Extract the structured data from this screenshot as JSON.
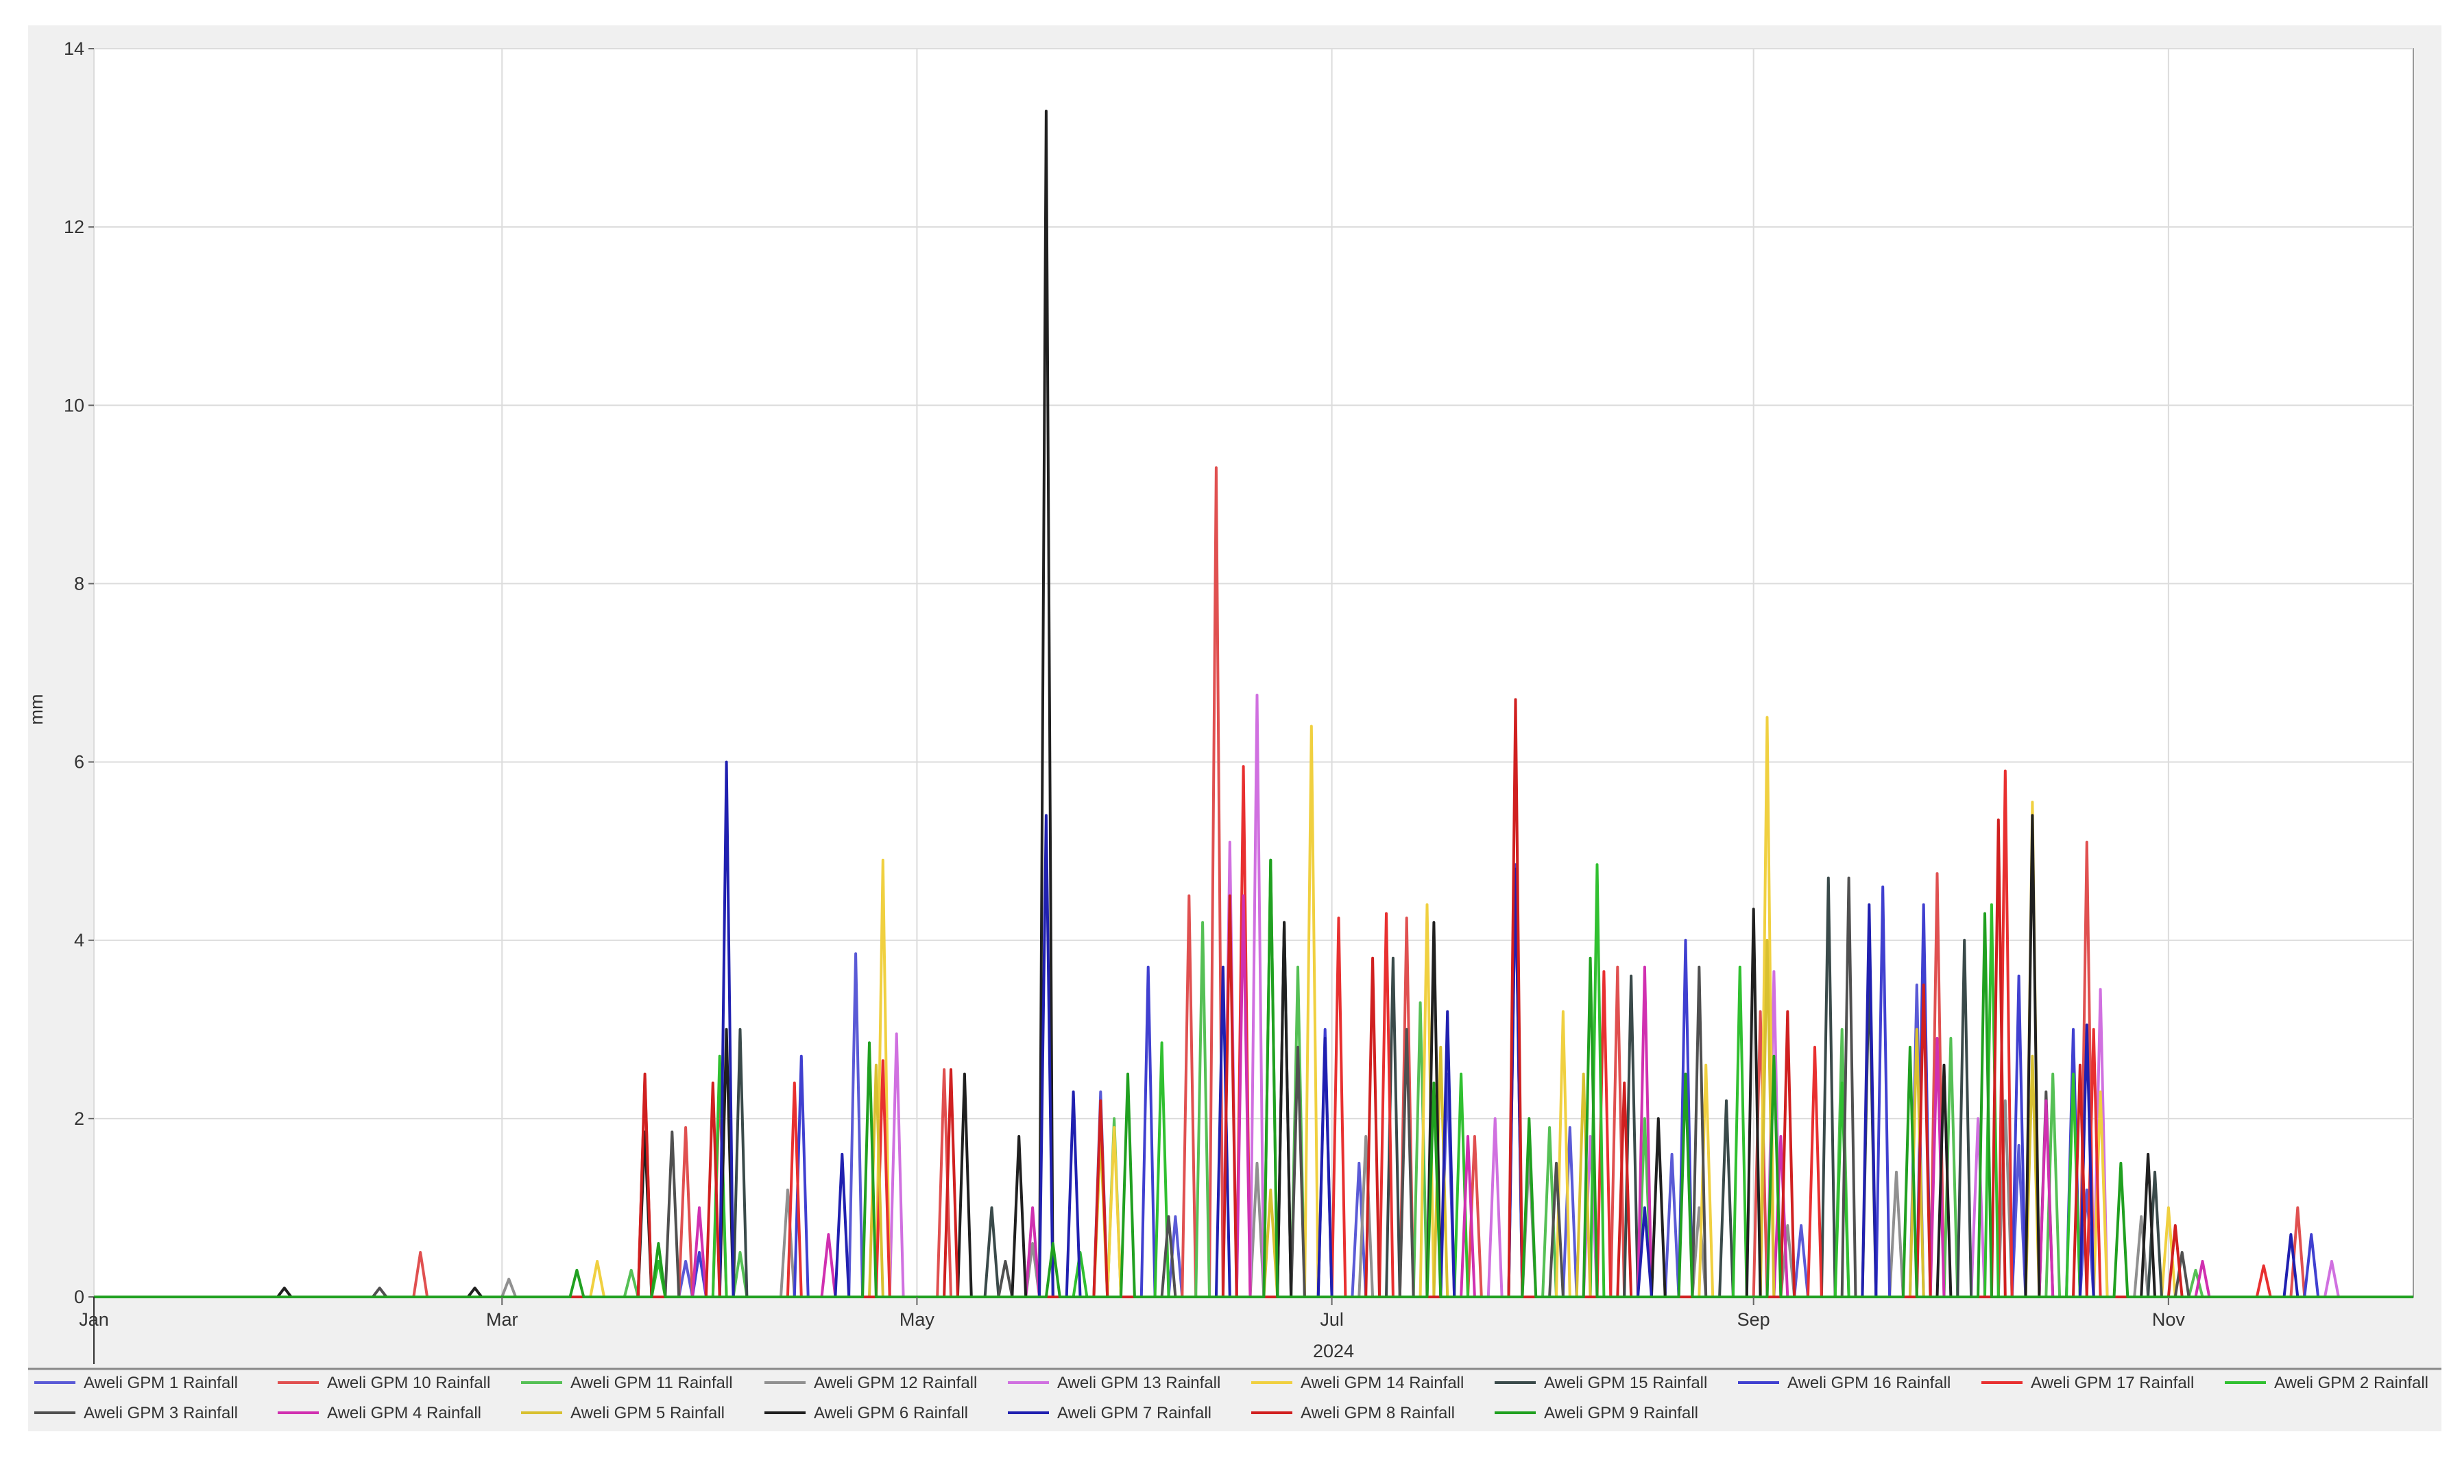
{
  "chart_data": {
    "type": "line",
    "title": "",
    "xlabel": "2024",
    "ylabel": "mm",
    "xlim": [
      "2024-01-01",
      "2024-12-07"
    ],
    "ylim": [
      0,
      14
    ],
    "yticks": [
      0,
      2,
      4,
      6,
      8,
      10,
      12,
      14
    ],
    "xticks": [
      {
        "date": "2024-01-01",
        "label": "Jan"
      },
      {
        "date": "2024-03-01",
        "label": "Mar"
      },
      {
        "date": "2024-05-01",
        "label": "May"
      },
      {
        "date": "2024-07-01",
        "label": "Jul"
      },
      {
        "date": "2024-09-01",
        "label": "Sep"
      },
      {
        "date": "2024-11-01",
        "label": "Nov"
      }
    ],
    "grid": true,
    "legend_placement": "bottom",
    "series": [
      {
        "name": "Aweli GPM 1 Rainfall",
        "color": "#5a5ad6",
        "points": [
          [
            "03-28",
            0.4
          ],
          [
            "04-22",
            3.85
          ],
          [
            "05-28",
            2.3
          ],
          [
            "06-08",
            0.9
          ],
          [
            "07-05",
            1.5
          ],
          [
            "07-18",
            2.5
          ],
          [
            "08-05",
            1.9
          ],
          [
            "08-20",
            1.6
          ],
          [
            "09-08",
            0.8
          ],
          [
            "09-25",
            3.5
          ],
          [
            "10-10",
            1.7
          ],
          [
            "10-20",
            1.2
          ]
        ]
      },
      {
        "name": "Aweli GPM 10 Rainfall",
        "color": "#e05050",
        "points": [
          [
            "02-18",
            0.5
          ],
          [
            "03-28",
            1.9
          ],
          [
            "04-02",
            2.4
          ],
          [
            "05-05",
            2.55
          ],
          [
            "06-10",
            4.5
          ],
          [
            "06-14",
            9.3
          ],
          [
            "07-12",
            4.25
          ],
          [
            "07-22",
            1.8
          ],
          [
            "08-12",
            3.7
          ],
          [
            "09-02",
            3.2
          ],
          [
            "09-28",
            4.75
          ],
          [
            "10-20",
            5.1
          ],
          [
            "11-20",
            1.0
          ]
        ]
      },
      {
        "name": "Aweli GPM 11 Rainfall",
        "color": "#55c055",
        "points": [
          [
            "03-20",
            0.3
          ],
          [
            "04-05",
            0.5
          ],
          [
            "05-30",
            2.0
          ],
          [
            "06-12",
            4.2
          ],
          [
            "06-26",
            3.7
          ],
          [
            "07-14",
            3.3
          ],
          [
            "08-02",
            1.9
          ],
          [
            "08-16",
            2.0
          ],
          [
            "09-14",
            3.0
          ],
          [
            "09-30",
            2.9
          ],
          [
            "10-15",
            2.5
          ],
          [
            "11-05",
            0.3
          ]
        ]
      },
      {
        "name": "Aweli GPM 12 Rainfall",
        "color": "#909090",
        "points": [
          [
            "03-02",
            0.2
          ],
          [
            "04-12",
            1.2
          ],
          [
            "05-18",
            0.6
          ],
          [
            "06-20",
            1.5
          ],
          [
            "07-06",
            1.8
          ],
          [
            "07-30",
            1.6
          ],
          [
            "08-24",
            1.0
          ],
          [
            "09-06",
            0.8
          ],
          [
            "09-22",
            1.4
          ],
          [
            "10-08",
            2.2
          ],
          [
            "10-28",
            0.9
          ]
        ]
      },
      {
        "name": "Aweli GPM 13 Rainfall",
        "color": "#d070e0",
        "points": [
          [
            "04-28",
            2.95
          ],
          [
            "06-16",
            5.1
          ],
          [
            "06-20",
            6.75
          ],
          [
            "07-25",
            2.0
          ],
          [
            "08-08",
            1.8
          ],
          [
            "09-04",
            3.65
          ],
          [
            "10-04",
            2.0
          ],
          [
            "10-22",
            3.45
          ],
          [
            "11-25",
            0.4
          ]
        ]
      },
      {
        "name": "Aweli GPM 14 Rainfall",
        "color": "#f0d040",
        "points": [
          [
            "03-15",
            0.4
          ],
          [
            "04-26",
            4.9
          ],
          [
            "05-30",
            1.9
          ],
          [
            "06-28",
            6.4
          ],
          [
            "07-15",
            4.4
          ],
          [
            "08-04",
            3.2
          ],
          [
            "08-25",
            2.6
          ],
          [
            "09-03",
            6.5
          ],
          [
            "10-12",
            5.55
          ],
          [
            "10-22",
            2.3
          ],
          [
            "11-01",
            1.0
          ]
        ]
      },
      {
        "name": "Aweli GPM 15 Rainfall",
        "color": "#3a4a4a",
        "points": [
          [
            "04-05",
            3.0
          ],
          [
            "05-12",
            1.0
          ],
          [
            "06-24",
            4.2
          ],
          [
            "07-10",
            3.8
          ],
          [
            "08-14",
            3.6
          ],
          [
            "08-28",
            2.2
          ],
          [
            "09-12",
            4.7
          ],
          [
            "09-18",
            3.7
          ],
          [
            "10-02",
            4.0
          ],
          [
            "10-30",
            1.4
          ]
        ]
      },
      {
        "name": "Aweli GPM 16 Rainfall",
        "color": "#4040d0",
        "points": [
          [
            "03-30",
            0.5
          ],
          [
            "04-14",
            2.7
          ],
          [
            "06-04",
            3.7
          ],
          [
            "06-30",
            3.0
          ],
          [
            "07-28",
            4.85
          ],
          [
            "08-22",
            4.0
          ],
          [
            "09-20",
            4.6
          ],
          [
            "09-26",
            4.4
          ],
          [
            "10-10",
            3.6
          ],
          [
            "10-18",
            3.0
          ],
          [
            "11-22",
            0.7
          ]
        ]
      },
      {
        "name": "Aweli GPM 17 Rainfall",
        "color": "#e83030",
        "points": [
          [
            "03-22",
            2.45
          ],
          [
            "04-13",
            2.4
          ],
          [
            "04-26",
            2.65
          ],
          [
            "06-18",
            5.95
          ],
          [
            "07-02",
            4.25
          ],
          [
            "07-09",
            4.3
          ],
          [
            "08-10",
            3.65
          ],
          [
            "09-10",
            2.8
          ],
          [
            "10-08",
            5.9
          ],
          [
            "10-21",
            3.0
          ],
          [
            "11-15",
            0.35
          ]
        ]
      },
      {
        "name": "Aweli GPM 2 Rainfall",
        "color": "#30c030",
        "points": [
          [
            "03-24",
            0.4
          ],
          [
            "04-02",
            2.7
          ],
          [
            "05-25",
            0.5
          ],
          [
            "06-06",
            2.85
          ],
          [
            "06-22",
            4.9
          ],
          [
            "07-20",
            2.5
          ],
          [
            "08-09",
            4.85
          ],
          [
            "08-30",
            3.7
          ],
          [
            "09-14",
            2.4
          ],
          [
            "10-06",
            4.4
          ],
          [
            "10-18",
            2.5
          ]
        ]
      },
      {
        "name": "Aweli GPM 3 Rainfall",
        "color": "#505050",
        "points": [
          [
            "02-12",
            0.1
          ],
          [
            "03-26",
            1.85
          ],
          [
            "05-14",
            0.4
          ],
          [
            "06-07",
            0.9
          ],
          [
            "06-26",
            2.8
          ],
          [
            "07-12",
            3.0
          ],
          [
            "08-03",
            1.5
          ],
          [
            "08-24",
            3.7
          ],
          [
            "09-15",
            4.7
          ],
          [
            "10-14",
            2.3
          ],
          [
            "11-03",
            0.5
          ]
        ]
      },
      {
        "name": "Aweli GPM 4 Rainfall",
        "color": "#d030b0",
        "points": [
          [
            "03-30",
            1.0
          ],
          [
            "04-18",
            0.7
          ],
          [
            "05-18",
            1.0
          ],
          [
            "06-18",
            4.5
          ],
          [
            "07-21",
            1.8
          ],
          [
            "08-16",
            3.7
          ],
          [
            "09-05",
            1.8
          ],
          [
            "09-28",
            2.9
          ],
          [
            "10-14",
            2.2
          ],
          [
            "11-06",
            0.4
          ]
        ]
      },
      {
        "name": "Aweli GPM 5 Rainfall",
        "color": "#d8c030",
        "points": [
          [
            "04-25",
            2.6
          ],
          [
            "05-28",
            1.8
          ],
          [
            "06-22",
            1.2
          ],
          [
            "07-17",
            2.8
          ],
          [
            "08-07",
            2.5
          ],
          [
            "09-03",
            4.0
          ],
          [
            "09-25",
            3.0
          ],
          [
            "10-12",
            2.7
          ]
        ]
      },
      {
        "name": "Aweli GPM 6 Rainfall",
        "color": "#202020",
        "points": [
          [
            "01-29",
            0.1
          ],
          [
            "02-26",
            0.1
          ],
          [
            "03-22",
            1.85
          ],
          [
            "04-03",
            3.0
          ],
          [
            "05-08",
            2.5
          ],
          [
            "05-16",
            1.8
          ],
          [
            "05-20",
            13.3
          ],
          [
            "06-24",
            4.2
          ],
          [
            "07-16",
            4.2
          ],
          [
            "08-18",
            2.0
          ],
          [
            "09-01",
            4.35
          ],
          [
            "09-29",
            2.6
          ],
          [
            "10-12",
            5.4
          ],
          [
            "10-29",
            1.6
          ]
        ]
      },
      {
        "name": "Aweli GPM 7 Rainfall",
        "color": "#2020b0",
        "points": [
          [
            "04-03",
            6.0
          ],
          [
            "04-20",
            1.6
          ],
          [
            "05-20",
            5.4
          ],
          [
            "05-24",
            2.3
          ],
          [
            "06-15",
            3.7
          ],
          [
            "06-30",
            2.9
          ],
          [
            "07-18",
            3.2
          ],
          [
            "07-28",
            4.8
          ],
          [
            "08-16",
            1.0
          ],
          [
            "09-18",
            4.4
          ],
          [
            "10-20",
            3.05
          ],
          [
            "11-19",
            0.7
          ]
        ]
      },
      {
        "name": "Aweli GPM 8 Rainfall",
        "color": "#d02020",
        "points": [
          [
            "03-22",
            2.5
          ],
          [
            "04-01",
            2.4
          ],
          [
            "05-06",
            2.55
          ],
          [
            "05-28",
            2.2
          ],
          [
            "06-16",
            4.5
          ],
          [
            "07-07",
            3.8
          ],
          [
            "07-28",
            6.7
          ],
          [
            "08-13",
            2.4
          ],
          [
            "09-06",
            3.2
          ],
          [
            "09-26",
            3.5
          ],
          [
            "10-07",
            5.35
          ],
          [
            "10-19",
            2.6
          ],
          [
            "11-02",
            0.8
          ]
        ]
      },
      {
        "name": "Aweli GPM 9 Rainfall",
        "color": "#20a020",
        "points": [
          [
            "03-12",
            0.3
          ],
          [
            "03-24",
            0.6
          ],
          [
            "04-24",
            2.85
          ],
          [
            "05-21",
            0.6
          ],
          [
            "06-01",
            2.5
          ],
          [
            "06-22",
            4.9
          ],
          [
            "07-16",
            2.4
          ],
          [
            "07-30",
            2.0
          ],
          [
            "08-08",
            3.8
          ],
          [
            "08-22",
            2.5
          ],
          [
            "09-04",
            2.7
          ],
          [
            "09-24",
            2.8
          ],
          [
            "10-05",
            4.3
          ],
          [
            "10-25",
            1.5
          ]
        ]
      }
    ]
  }
}
